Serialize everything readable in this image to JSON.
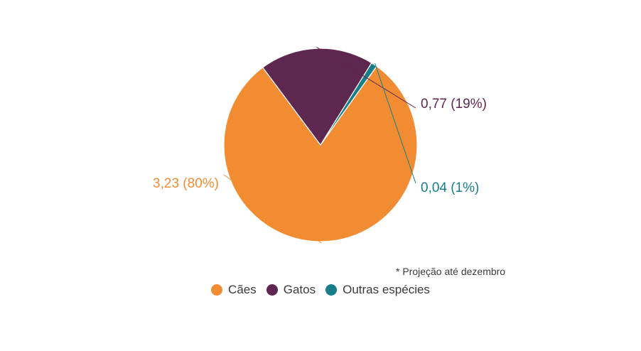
{
  "chart_data": {
    "type": "pie",
    "categories": [
      "Cães",
      "Gatos",
      "Outras espécies"
    ],
    "values": [
      3.23,
      0.77,
      0.04
    ],
    "percent_labels": [
      "80%",
      "19%",
      "1%"
    ],
    "data_labels": [
      "3,23 (80%)",
      "0,77 (19%)",
      "0,04 (1%)"
    ],
    "colors": [
      "#f28c33",
      "#5e2750",
      "#177e89"
    ],
    "legend_position": "bottom",
    "note": "* Projeção até dezembro"
  }
}
